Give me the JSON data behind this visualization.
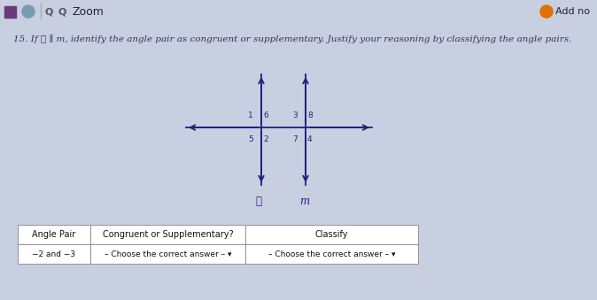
{
  "bg_color": "#c8cfe0",
  "toolbar_bg": "#bcc8da",
  "toolbar_text": "Zoom",
  "top_right_text": "Add no",
  "content_bg": "#e8ecf2",
  "white_bg": "#f5f5f5",
  "question_text": "15. If ℓ ∥ m, identify the angle pair as congruent or supplementary. Justify your reasoning by classifying the angle pairs.",
  "diagram": {
    "transversal1_label": "ℓ",
    "transversal2_label": "m",
    "line_color": "#1a237e"
  },
  "table": {
    "headers": [
      "Angle Pair",
      "Congruent or Supplementary?",
      "Classify"
    ],
    "row": [
      "−2 and −3",
      "– Choose the correct answer – ▾",
      "– Choose the correct answer – ▾"
    ],
    "border_color": "#888888",
    "text_color": "#111111"
  },
  "font_color_dark": "#1a237e",
  "font_color_body": "#333355",
  "title_font_size": 7.5,
  "small_font_size": 6.5,
  "table_font_size": 7.0
}
